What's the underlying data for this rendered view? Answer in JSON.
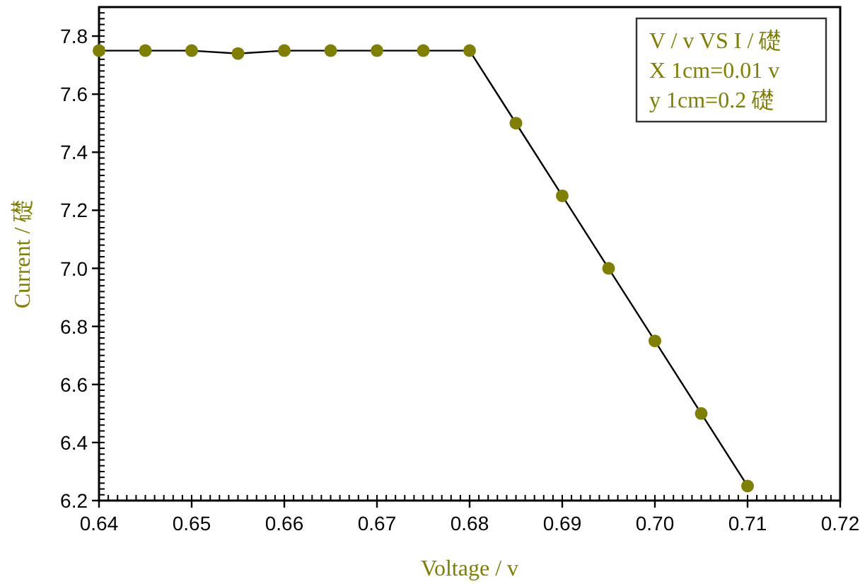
{
  "chart_data": {
    "type": "line",
    "xlabel": "Voltage / v",
    "ylabel": "Current / 礎",
    "x": [
      0.64,
      0.645,
      0.65,
      0.655,
      0.66,
      0.665,
      0.67,
      0.675,
      0.68,
      0.685,
      0.69,
      0.695,
      0.7,
      0.705,
      0.71
    ],
    "series": [
      {
        "color": "#808000",
        "values": [
          7.75,
          7.75,
          7.75,
          7.74,
          7.75,
          7.75,
          7.75,
          7.75,
          7.75,
          7.5,
          7.25,
          7.0,
          6.75,
          6.5,
          6.25
        ]
      }
    ],
    "xlim": [
      0.64,
      0.72
    ],
    "ylim": [
      6.2,
      7.9
    ],
    "xticks": [
      {
        "value": 0.64,
        "label": "0.64"
      },
      {
        "value": 0.65,
        "label": "0.65"
      },
      {
        "value": 0.66,
        "label": "0.66"
      },
      {
        "value": 0.67,
        "label": "0.67"
      },
      {
        "value": 0.68,
        "label": "0.68"
      },
      {
        "value": 0.69,
        "label": "0.69"
      },
      {
        "value": 0.7,
        "label": "0.70"
      },
      {
        "value": 0.71,
        "label": "0.71"
      },
      {
        "value": 0.72,
        "label": "0.72"
      }
    ],
    "yticks": [
      {
        "value": 6.2,
        "label": "6.2"
      },
      {
        "value": 6.4,
        "label": "6.4"
      },
      {
        "value": 6.6,
        "label": "6.6"
      },
      {
        "value": 6.8,
        "label": "6.8"
      },
      {
        "value": 7.0,
        "label": "7.0"
      },
      {
        "value": 7.2,
        "label": "7.2"
      },
      {
        "value": 7.4,
        "label": "7.4"
      },
      {
        "value": 7.6,
        "label": "7.6"
      },
      {
        "value": 7.8,
        "label": "7.8"
      }
    ],
    "annotations": [
      "V / v VS I / 礎",
      "X 1cm=0.01 v",
      "y 1cm=0.2 礎"
    ],
    "marker": "circle",
    "line_style": "solid",
    "grid": false
  }
}
